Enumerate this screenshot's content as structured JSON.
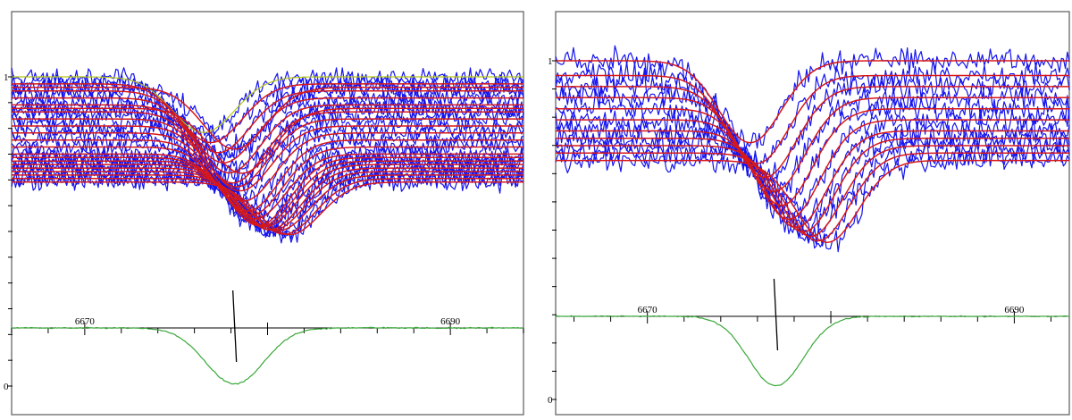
{
  "chart_data": [
    {
      "type": "line",
      "panel": "left",
      "yticklabels": [
        {
          "value": 1,
          "label": "1"
        },
        {
          "value": 0,
          "label": "0"
        }
      ],
      "xticklabels": [
        {
          "value": 6670,
          "label": "6670"
        },
        {
          "value": 6690,
          "label": "6690"
        }
      ],
      "xlim": [
        6666,
        6694
      ],
      "marker_x": 6678.2,
      "series": [
        {
          "role": "observed spectra",
          "count": 22,
          "noise": 0.04
        },
        {
          "role": "model fits"
        }
      ],
      "profiles_center": [
        6676.5,
        6676.9,
        6677.3,
        6677.6,
        6677.9,
        6678.1,
        6678.3,
        6678.5,
        6678.7,
        6678.9,
        6679.1,
        6679.3,
        6679.5,
        6679.7,
        6679.9,
        6680.1,
        6680.3,
        6680.6,
        6680.9,
        6681.2,
        6678.2,
        6678.6
      ],
      "profiles_depth": [
        0.18,
        0.19,
        0.2,
        0.21,
        0.22,
        0.23,
        0.22,
        0.21,
        0.22,
        0.23,
        0.22,
        0.21,
        0.22,
        0.21,
        0.2,
        0.2,
        0.19,
        0.18,
        0.18,
        0.17,
        0.2,
        0.21
      ],
      "profiles_continuum": [
        1.0,
        0.98,
        0.96,
        0.94,
        0.92,
        0.9,
        0.88,
        0.86,
        0.84,
        0.82,
        0.8,
        0.78,
        0.77,
        0.76,
        0.75,
        0.74,
        0.73,
        0.72,
        0.71,
        0.7,
        0.97,
        0.91
      ],
      "mean_profile": {
        "center": 6678.2,
        "depth": 0.19,
        "sigma": 1.6,
        "continuum": 0.0
      }
    },
    {
      "type": "line",
      "panel": "right",
      "yticklabels": [
        {
          "value": 1,
          "label": "1"
        },
        {
          "value": 0,
          "label": "0"
        }
      ],
      "xticklabels": [
        {
          "value": 6670,
          "label": "6670"
        },
        {
          "value": 6690,
          "label": "6690"
        }
      ],
      "xlim": [
        6665,
        6693
      ],
      "marker_x": 6677.0,
      "series": [
        {
          "role": "observed spectra",
          "count": 11,
          "noise": 0.05
        },
        {
          "role": "model fits"
        }
      ],
      "profiles_center": [
        6675.6,
        6676.0,
        6676.4,
        6676.9,
        6677.3,
        6677.7,
        6678.1,
        6678.5,
        6678.9,
        6679.3,
        6679.8
      ],
      "profiles_depth": [
        0.28,
        0.3,
        0.31,
        0.32,
        0.33,
        0.34,
        0.33,
        0.32,
        0.31,
        0.3,
        0.28
      ],
      "profiles_continuum": [
        1.0,
        0.96,
        0.93,
        0.9,
        0.87,
        0.84,
        0.81,
        0.79,
        0.77,
        0.75,
        0.73
      ],
      "mean_profile": {
        "center": 6677.0,
        "depth": 0.21,
        "sigma": 1.5,
        "continuum": 0.0
      }
    }
  ]
}
